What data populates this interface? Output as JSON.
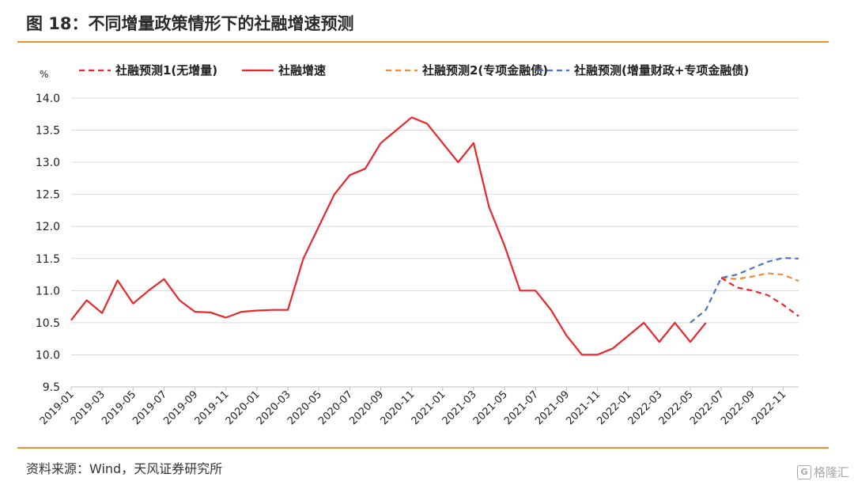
{
  "header": {
    "title": "图 18：不同增量政策情形下的社融增速预测"
  },
  "footer": {
    "source": "资料来源：Wind，天风证券研究所",
    "watermark": "格隆汇"
  },
  "colors": {
    "accent": "#e8912e",
    "red": "#e8262b",
    "orange": "#f28c3b",
    "blue": "#4d73c4",
    "grid": "#d9d9d9"
  },
  "chart_data": {
    "type": "line",
    "title": "",
    "ylabel": "%",
    "ylim": [
      9.5,
      14.0
    ],
    "yticks": [
      "9.5",
      "10.0",
      "10.5",
      "11.0",
      "11.5",
      "12.0",
      "12.5",
      "13.0",
      "13.5",
      "14.0"
    ],
    "grid": true,
    "legend_position": "top",
    "x": [
      "2019-01",
      "2019-02",
      "2019-03",
      "2019-04",
      "2019-05",
      "2019-06",
      "2019-07",
      "2019-08",
      "2019-09",
      "2019-10",
      "2019-11",
      "2019-12",
      "2020-01",
      "2020-02",
      "2020-03",
      "2020-04",
      "2020-05",
      "2020-06",
      "2020-07",
      "2020-08",
      "2020-09",
      "2020-10",
      "2020-11",
      "2020-12",
      "2021-01",
      "2021-02",
      "2021-03",
      "2021-04",
      "2021-05",
      "2021-06",
      "2021-07",
      "2021-08",
      "2021-09",
      "2021-10",
      "2021-11",
      "2021-12",
      "2022-01",
      "2022-02",
      "2022-03",
      "2022-04",
      "2022-05",
      "2022-06",
      "2022-07",
      "2022-08",
      "2022-09",
      "2022-10",
      "2022-11",
      "2022-12"
    ],
    "xtick_labels": [
      "2019-01",
      "2019-03",
      "2019-05",
      "2019-07",
      "2019-09",
      "2019-11",
      "2020-01",
      "2020-03",
      "2020-05",
      "2020-07",
      "2020-09",
      "2020-11",
      "2021-01",
      "2021-03",
      "2021-05",
      "2021-07",
      "2021-09",
      "2021-11",
      "2022-01",
      "2022-03",
      "2022-05",
      "2022-07",
      "2022-09",
      "2022-11"
    ],
    "series": [
      {
        "name": "社融预测1(无增量)",
        "style": "dashed",
        "color": "#e8262b",
        "values": [
          null,
          null,
          null,
          null,
          null,
          null,
          null,
          null,
          null,
          null,
          null,
          null,
          null,
          null,
          null,
          null,
          null,
          null,
          null,
          null,
          null,
          null,
          null,
          null,
          null,
          null,
          null,
          null,
          null,
          null,
          null,
          null,
          null,
          null,
          null,
          null,
          null,
          null,
          null,
          null,
          null,
          null,
          11.2,
          11.05,
          11.0,
          10.93,
          10.78,
          10.6
        ]
      },
      {
        "name": "社融增速",
        "style": "solid",
        "color": "#e8262b",
        "values": [
          10.54,
          10.85,
          10.65,
          11.16,
          10.8,
          11.0,
          11.18,
          10.85,
          10.67,
          10.66,
          10.58,
          10.67,
          10.69,
          10.7,
          10.7,
          11.5,
          12.0,
          12.5,
          12.8,
          12.9,
          13.3,
          13.5,
          13.7,
          13.6,
          13.3,
          13.0,
          13.3,
          12.3,
          11.7,
          11.0,
          11.0,
          10.7,
          10.3,
          10.0,
          10.0,
          10.1,
          10.3,
          10.5,
          10.2,
          10.5,
          10.2,
          10.5,
          null,
          null,
          null,
          null,
          null,
          null
        ]
      },
      {
        "name": "社融预测2(专项金融债)",
        "style": "dashed",
        "color": "#f28c3b",
        "values": [
          null,
          null,
          null,
          null,
          null,
          null,
          null,
          null,
          null,
          null,
          null,
          null,
          null,
          null,
          null,
          null,
          null,
          null,
          null,
          null,
          null,
          null,
          null,
          null,
          null,
          null,
          null,
          null,
          null,
          null,
          null,
          null,
          null,
          null,
          null,
          null,
          null,
          null,
          null,
          null,
          null,
          null,
          11.2,
          11.18,
          11.22,
          11.27,
          11.25,
          11.15
        ]
      },
      {
        "name": "社融预测(增量财政+专项金融债)",
        "style": "dashed",
        "color": "#4d73c4",
        "values": [
          null,
          null,
          null,
          null,
          null,
          null,
          null,
          null,
          null,
          null,
          null,
          null,
          null,
          null,
          null,
          null,
          null,
          null,
          null,
          null,
          null,
          null,
          null,
          null,
          null,
          null,
          null,
          null,
          null,
          null,
          null,
          null,
          null,
          null,
          null,
          null,
          null,
          null,
          null,
          null,
          10.5,
          10.7,
          11.2,
          11.25,
          11.35,
          11.45,
          11.51,
          11.5
        ]
      }
    ]
  }
}
